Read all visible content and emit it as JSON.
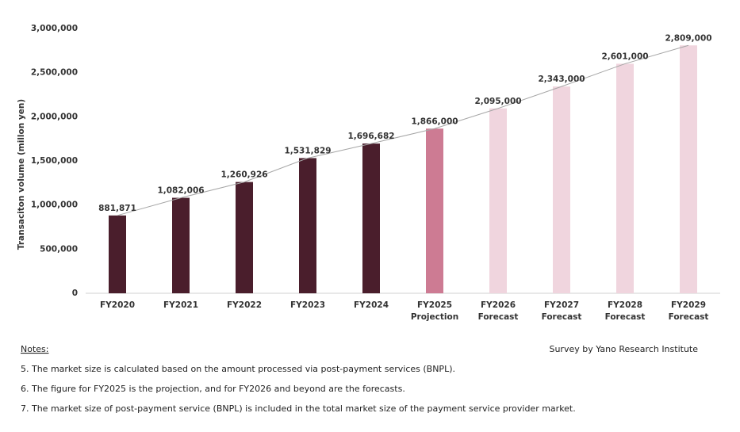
{
  "chart_data": {
    "type": "bar",
    "y_label": "Transaciton volume (millon yen)",
    "categories": [
      [
        "FY2020"
      ],
      [
        "FY2021"
      ],
      [
        "FY2022"
      ],
      [
        "FY2023"
      ],
      [
        "FY2024"
      ],
      [
        "FY2025",
        "Projection"
      ],
      [
        "FY2026",
        "Forecast"
      ],
      [
        "FY2027",
        "Forecast"
      ],
      [
        "FY2028",
        "Forecast"
      ],
      [
        "FY2029",
        "Forecast"
      ]
    ],
    "values": [
      881871,
      1082006,
      1260926,
      1531829,
      1696682,
      1866000,
      2095000,
      2343000,
      2601000,
      2809000
    ],
    "value_labels": [
      "881,871",
      "1,082,006",
      "1,260,926",
      "1,531,829",
      "1,696,682",
      "1,866,000",
      "2,095,000",
      "2,343,000",
      "2,601,000",
      "2,809,000"
    ],
    "colors": [
      "#4a1e2c",
      "#4a1e2c",
      "#4a1e2c",
      "#4a1e2c",
      "#4a1e2c",
      "#cd7b93",
      "#f0d5de",
      "#f0d5de",
      "#f0d5de",
      "#f0d5de"
    ],
    "line": true,
    "line_color": "#a6a6a6",
    "ylim": [
      0,
      3000000
    ],
    "yticks": [
      0,
      {
        "value": 500000,
        "label": "500,000"
      },
      {
        "value": 1000000,
        "label": "1,000,000"
      },
      {
        "value": 1500000,
        "label": "1,500,000"
      },
      {
        "value": 2000000,
        "label": "2,000,000"
      },
      {
        "value": 2500000,
        "label": "2,500,000"
      },
      {
        "value": 3000000,
        "label": "3,000,000"
      }
    ],
    "grid": false
  },
  "notes": {
    "heading": "Notes:",
    "source": "Survey by Yano Research Institute",
    "items": [
      "5. The market size is calculated based on the amount processed via post-payment services (BNPL).",
      "6. The figure for FY2025 is the projection, and for FY2026 and beyond are the forecasts.",
      "7.  The market size of post-payment service (BNPL) is included in the total market size of the payment service provider market."
    ]
  }
}
